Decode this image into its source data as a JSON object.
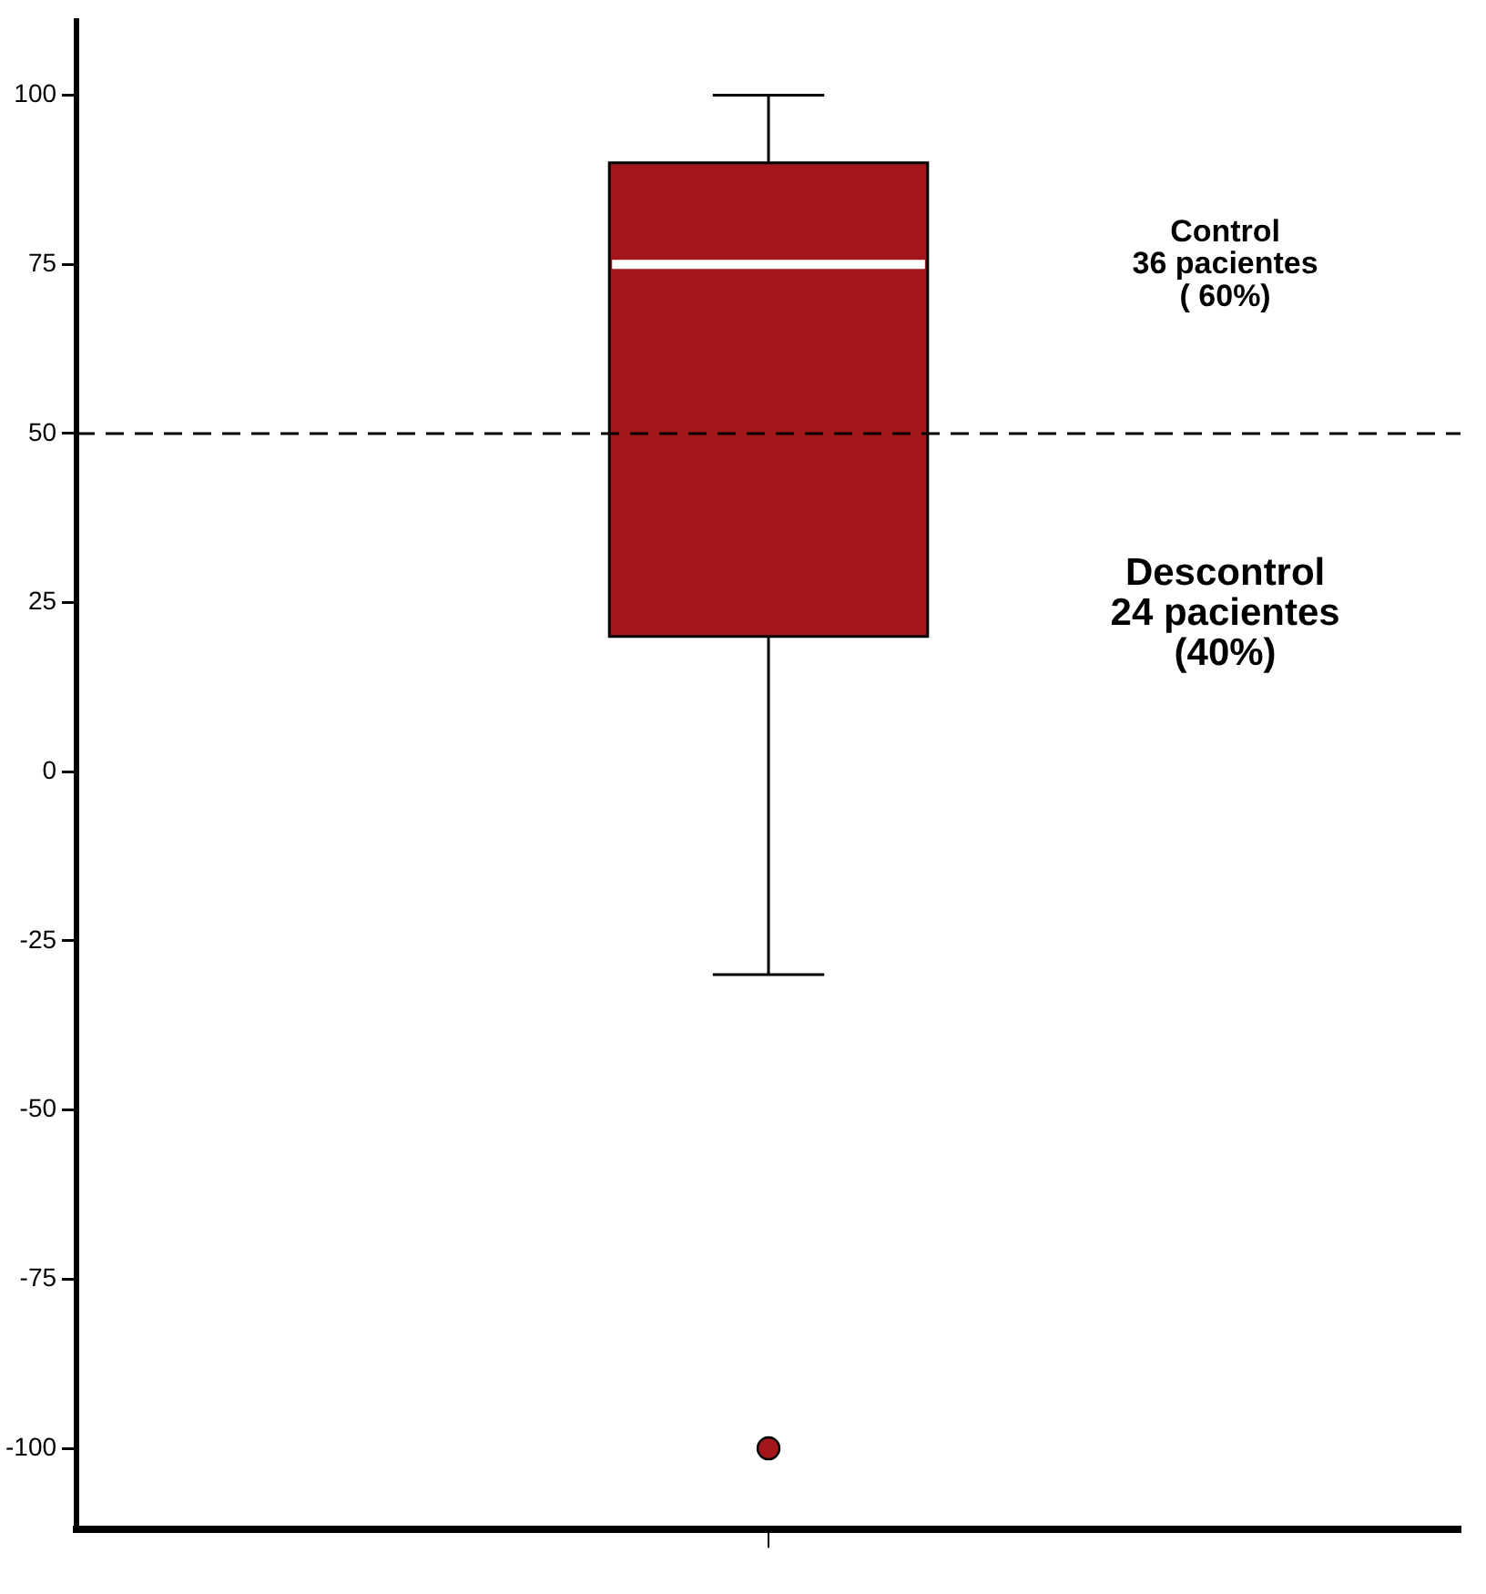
{
  "chart_data": {
    "type": "box",
    "categories": [
      null
    ],
    "boxes": [
      {
        "low": -30,
        "q1": 20,
        "median": 75,
        "q3": 90,
        "high": 100,
        "outliers": [
          -100
        ]
      }
    ],
    "color": "#a3171b",
    "ylim": [
      -112,
      111
    ],
    "yticks": [
      -100,
      -75,
      -50,
      -25,
      0,
      25,
      50,
      75,
      100
    ],
    "grid": false,
    "legend": false,
    "ref_lines": [
      {
        "axis": "y",
        "value": 50,
        "color": "#000000",
        "line_style": "dashed"
      }
    ],
    "annotations": [
      "Control\n36 pacientes\n( 60%)",
      "Descontrol\n24 pacientes\n(40%)"
    ]
  }
}
